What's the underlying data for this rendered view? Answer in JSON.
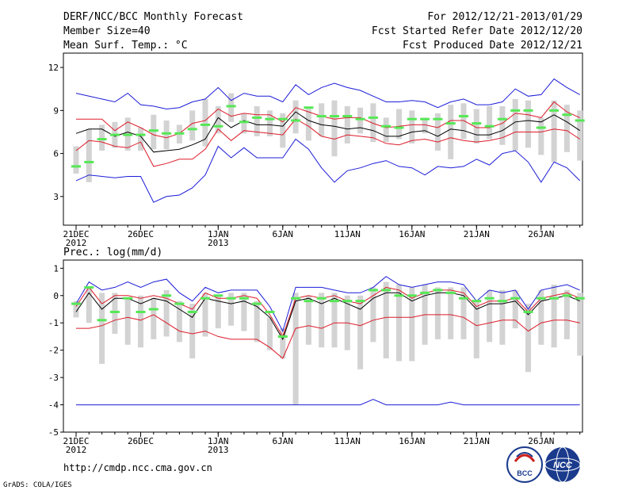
{
  "header": {
    "title": "DERF/NCC/BCC Monthly Forecast",
    "member_size": "Member Size=40",
    "variable": "Mean Surf. Temp.: °C",
    "period": "For 2012/12/21-2013/01/29",
    "started": "Fcst Started Refer Date 2012/12/20",
    "produced": "Fcst Produced Date 2012/12/21"
  },
  "footer": {
    "url": "http://cmdp.ncc.cma.gov.cn",
    "credit": "GrADS: COLA/IGES",
    "logo_left": "BCC",
    "logo_right": "NCC"
  },
  "colors": {
    "ensemble_mean": "#000000",
    "percentile_band": "#dd1c2a",
    "envelope": "#1c1cd8",
    "median_bar": "#55e855",
    "box": "#d3d3d3",
    "logo_blue": "#1a3a8c",
    "logo_red": "#cc2222"
  },
  "chart_data": [
    {
      "type": "line",
      "title": "Mean Surf. Temp.: °C",
      "ylim": [
        1,
        13
      ],
      "yticks": [
        3,
        6,
        9,
        12
      ],
      "day_count": 40,
      "xtick_labels": [
        {
          "day": 0,
          "label": "21DEC",
          "year": "2012"
        },
        {
          "day": 5,
          "label": "26DEC"
        },
        {
          "day": 11,
          "label": "1JAN",
          "year": "2013"
        },
        {
          "day": 16,
          "label": "6JAN"
        },
        {
          "day": 21,
          "label": "11JAN"
        },
        {
          "day": 26,
          "label": "16JAN"
        },
        {
          "day": 31,
          "label": "21JAN"
        },
        {
          "day": 36,
          "label": "26JAN"
        }
      ],
      "series": [
        {
          "name": "max",
          "values": [
            10.2,
            10.0,
            9.8,
            9.6,
            10.2,
            9.4,
            9.3,
            9.1,
            9.2,
            9.6,
            9.8,
            10.6,
            9.7,
            10.2,
            10.0,
            10.0,
            9.6,
            10.8,
            10.1,
            10.6,
            10.9,
            10.6,
            10.4,
            10.0,
            9.6,
            9.6,
            9.7,
            9.6,
            9.2,
            9.6,
            9.8,
            9.4,
            9.4,
            9.6,
            10.5,
            10.0,
            10.1,
            11.2,
            10.6,
            10.1
          ]
        },
        {
          "name": "upper",
          "values": [
            8.4,
            8.4,
            8.4,
            7.6,
            8.2,
            7.8,
            7.3,
            7.1,
            7.4,
            8.1,
            8.3,
            9.1,
            8.6,
            8.8,
            8.7,
            8.7,
            8.2,
            9.2,
            8.9,
            8.6,
            8.4,
            8.5,
            8.5,
            8.1,
            7.8,
            7.9,
            8.0,
            8.0,
            7.8,
            8.3,
            8.3,
            7.8,
            7.8,
            8.1,
            8.8,
            8.7,
            8.5,
            9.6,
            8.9,
            8.5
          ]
        },
        {
          "name": "mean",
          "values": [
            7.4,
            7.7,
            7.7,
            7.2,
            7.5,
            7.2,
            6.1,
            6.2,
            6.3,
            6.6,
            7.0,
            8.5,
            7.8,
            8.3,
            8.0,
            8.0,
            7.9,
            8.9,
            8.3,
            8.0,
            7.9,
            7.7,
            7.8,
            7.6,
            7.2,
            7.2,
            7.5,
            7.6,
            7.2,
            7.7,
            7.6,
            7.3,
            7.3,
            7.6,
            8.2,
            8.3,
            8.2,
            8.7,
            8.2,
            7.6
          ]
        },
        {
          "name": "lower",
          "values": [
            6.2,
            6.9,
            6.8,
            6.5,
            6.4,
            6.8,
            5.1,
            5.3,
            5.6,
            5.6,
            6.3,
            7.7,
            6.9,
            7.6,
            7.5,
            7.4,
            7.3,
            8.4,
            7.9,
            7.2,
            7.0,
            7.3,
            7.2,
            7.1,
            6.7,
            6.6,
            6.9,
            7.0,
            6.8,
            7.1,
            6.9,
            6.8,
            6.9,
            7.1,
            7.5,
            7.5,
            7.5,
            7.7,
            7.6,
            7.0
          ]
        },
        {
          "name": "min",
          "values": [
            4.1,
            4.5,
            4.4,
            4.3,
            4.4,
            4.4,
            2.6,
            3.0,
            3.1,
            3.6,
            4.5,
            6.5,
            5.7,
            6.4,
            5.7,
            5.7,
            5.7,
            7.0,
            6.3,
            5.0,
            4.0,
            4.8,
            5.0,
            5.3,
            5.5,
            5.1,
            5.0,
            4.5,
            5.1,
            5.0,
            5.1,
            5.6,
            5.2,
            6.0,
            6.2,
            5.4,
            4.0,
            5.4,
            5.0,
            4.1
          ]
        },
        {
          "name": "median",
          "values": [
            5.1,
            5.4,
            7.0,
            7.3,
            7.3,
            7.3,
            7.6,
            7.4,
            7.4,
            7.7,
            8.0,
            7.9,
            9.3,
            8.2,
            8.5,
            8.4,
            8.4,
            8.3,
            9.2,
            8.6,
            8.6,
            8.6,
            8.4,
            8.5,
            7.9,
            7.8,
            8.4,
            8.4,
            8.4,
            8.1,
            8.6,
            8.1,
            7.9,
            8.4,
            9.0,
            9.0,
            7.8,
            9.0,
            8.7,
            8.3
          ]
        }
      ],
      "boxes": {
        "low": [
          4.6,
          4.0,
          6.2,
          6.4,
          6.2,
          6.2,
          6.3,
          6.3,
          6.7,
          6.9,
          6.5,
          7.4,
          8.2,
          7.4,
          7.2,
          7.2,
          6.4,
          7.4,
          6.9,
          7.2,
          5.8,
          6.7,
          7.4,
          6.8,
          6.8,
          7.0,
          6.7,
          7.4,
          6.2,
          5.6,
          7.0,
          6.7,
          7.0,
          6.6,
          6.2,
          6.4,
          5.9,
          5.4,
          6.1,
          5.5
        ],
        "high": [
          6.5,
          7.7,
          8.0,
          8.2,
          8.5,
          7.8,
          8.7,
          8.3,
          8.0,
          9.0,
          9.8,
          9.3,
          10.2,
          8.8,
          9.3,
          9.0,
          8.8,
          9.7,
          9.1,
          9.5,
          9.7,
          9.3,
          9.2,
          9.5,
          8.5,
          9.1,
          9.0,
          8.5,
          8.8,
          9.4,
          9.5,
          9.1,
          9.3,
          9.3,
          9.8,
          9.7,
          8.5,
          9.7,
          9.4,
          9.0
        ]
      }
    },
    {
      "type": "line",
      "title": "Prec.: log(mm/d)",
      "ylim": [
        -5,
        1.3
      ],
      "yticks": [
        -5,
        -4,
        -3,
        -2,
        -1,
        0,
        1
      ],
      "day_count": 40,
      "xtick_labels": [
        {
          "day": 0,
          "label": "21DEC",
          "year": "2012"
        },
        {
          "day": 5,
          "label": "26DEC"
        },
        {
          "day": 11,
          "label": "1JAN",
          "year": "2013"
        },
        {
          "day": 16,
          "label": "6JAN"
        },
        {
          "day": 21,
          "label": "11JAN"
        },
        {
          "day": 26,
          "label": "16JAN"
        },
        {
          "day": 31,
          "label": "21JAN"
        },
        {
          "day": 36,
          "label": "26JAN"
        }
      ],
      "series": [
        {
          "name": "max",
          "values": [
            -0.3,
            0.5,
            0.2,
            0.3,
            0.5,
            0.3,
            0.5,
            0.6,
            0.1,
            -0.2,
            0.3,
            0.1,
            0.2,
            0.2,
            0.2,
            -0.4,
            -1.3,
            0.3,
            0.3,
            0.3,
            0.2,
            0.1,
            0.1,
            0.3,
            0.7,
            0.4,
            0.3,
            0.4,
            0.5,
            0.5,
            0.4,
            -0.2,
            0.2,
            0.1,
            0.2,
            -0.5,
            0.2,
            0.3,
            0.4,
            0.2
          ]
        },
        {
          "name": "upper",
          "values": [
            -0.4,
            0.3,
            -0.3,
            0.0,
            0.0,
            -0.1,
            0.0,
            -0.1,
            -0.3,
            -0.5,
            0.1,
            -0.1,
            -0.1,
            0.0,
            -0.1,
            -0.7,
            -1.5,
            -0.1,
            0.0,
            -0.1,
            0.0,
            -0.2,
            -0.3,
            0.0,
            0.3,
            0.2,
            -0.1,
            0.1,
            0.2,
            0.2,
            0.1,
            -0.4,
            -0.2,
            -0.2,
            -0.1,
            -0.6,
            -0.1,
            0.0,
            0.1,
            -0.1
          ]
        },
        {
          "name": "mean",
          "values": [
            -0.6,
            0.1,
            -0.5,
            -0.1,
            -0.1,
            -0.3,
            -0.1,
            -0.2,
            -0.5,
            -0.8,
            -0.1,
            -0.2,
            -0.3,
            -0.2,
            -0.4,
            -0.8,
            -1.6,
            -0.2,
            -0.1,
            -0.3,
            -0.1,
            -0.3,
            -0.5,
            -0.1,
            0.1,
            0.1,
            -0.2,
            0.0,
            0.1,
            0.1,
            0.0,
            -0.5,
            -0.3,
            -0.3,
            -0.2,
            -0.7,
            -0.2,
            -0.1,
            0.0,
            -0.2
          ]
        },
        {
          "name": "lower",
          "values": [
            -1.2,
            -1.2,
            -1.1,
            -0.9,
            -0.8,
            -0.9,
            -0.7,
            -1.0,
            -1.3,
            -1.4,
            -1.3,
            -1.5,
            -1.6,
            -1.6,
            -1.6,
            -1.9,
            -2.3,
            -1.2,
            -1.1,
            -1.2,
            -1.0,
            -1.0,
            -1.1,
            -0.9,
            -0.8,
            -0.8,
            -0.8,
            -0.7,
            -0.7,
            -0.7,
            -0.8,
            -1.1,
            -1.0,
            -0.9,
            -0.9,
            -1.3,
            -1.0,
            -0.9,
            -0.9,
            -1.0
          ]
        },
        {
          "name": "min",
          "values": [
            -4,
            -4,
            -4,
            -4,
            -4,
            -4,
            -4,
            -4,
            -4,
            -4,
            -4,
            -4,
            -4,
            -4,
            -4,
            -4,
            -4,
            -4,
            -4,
            -4,
            -4,
            -4,
            -4,
            -3.8,
            -4,
            -4,
            -4,
            -4,
            -4,
            -3.9,
            -4,
            -4,
            -4,
            -4,
            -4,
            -4,
            -4,
            -4,
            -4,
            -4
          ]
        },
        {
          "name": "median",
          "values": [
            -0.3,
            0.3,
            -0.9,
            -0.6,
            -0.1,
            -0.6,
            -0.5,
            0.0,
            -0.3,
            -0.6,
            -0.1,
            0.0,
            -0.1,
            -0.1,
            -0.3,
            -0.6,
            -1.5,
            -0.1,
            -0.2,
            -0.1,
            -0.2,
            -0.2,
            -0.2,
            0.2,
            0.2,
            0.0,
            0.0,
            0.1,
            0.2,
            0.1,
            -0.1,
            -0.2,
            -0.1,
            -0.2,
            -0.1,
            -0.6,
            -0.1,
            -0.1,
            0.0,
            -0.1
          ]
        }
      ],
      "boxes": {
        "low": [
          -0.8,
          -1.0,
          -2.5,
          -1.4,
          -1.8,
          -1.9,
          -1.6,
          -1.5,
          -1.7,
          -2.3,
          -1.5,
          -1.2,
          -1.1,
          -1.3,
          -1.7,
          -2.0,
          -2.3,
          -4.0,
          -1.8,
          -1.9,
          -1.9,
          -2.0,
          -2.7,
          -1.7,
          -2.3,
          -2.4,
          -2.4,
          -1.8,
          -1.6,
          -1.6,
          -1.6,
          -2.3,
          -1.7,
          -1.8,
          -1.2,
          -2.8,
          -1.8,
          -1.9,
          -1.6,
          -2.2
        ],
        "high": [
          -0.2,
          0.3,
          0.1,
          0.1,
          -0.1,
          0.0,
          -0.1,
          0.2,
          -0.2,
          -0.3,
          0.1,
          0.0,
          0.1,
          0.1,
          -0.2,
          -0.8,
          -1.2,
          0.1,
          0.0,
          0.1,
          0.1,
          0.0,
          0.0,
          0.3,
          0.5,
          0.4,
          0.3,
          0.4,
          0.3,
          0.3,
          0.3,
          -0.2,
          0.2,
          0.2,
          0.2,
          -0.3,
          0.2,
          0.4,
          0.2,
          0.1
        ]
      }
    }
  ]
}
